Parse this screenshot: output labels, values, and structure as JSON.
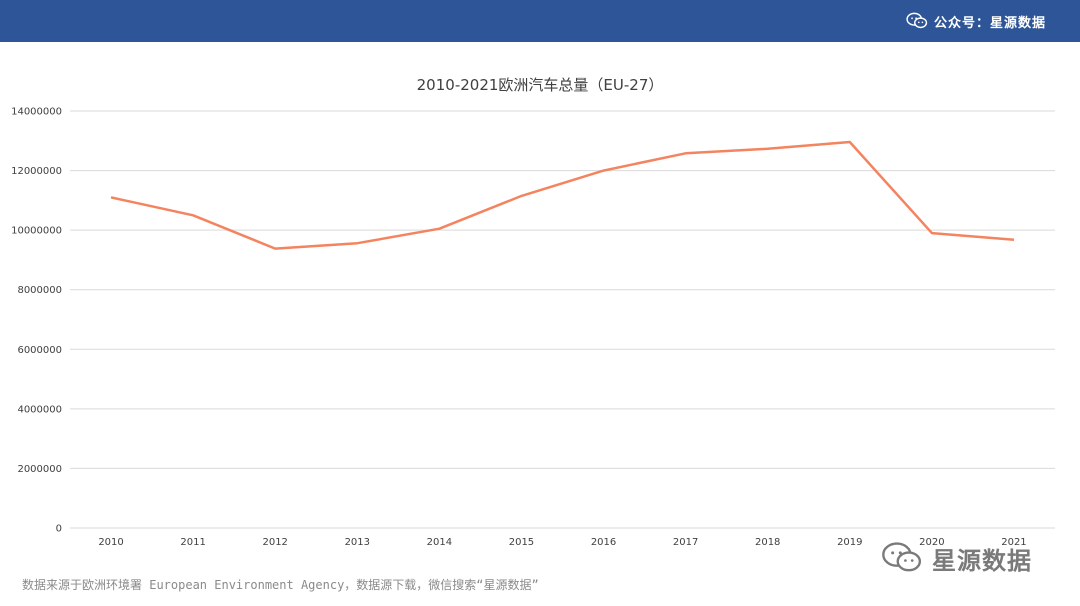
{
  "header": {
    "account_label": "公众号：星源数据",
    "bar_color": "#2e5597",
    "icon": "wechat-icon"
  },
  "chart_data": {
    "type": "line",
    "title": "2010-2021欧洲汽车总量（EU-27）",
    "xlabel": "",
    "ylabel": "",
    "categories": [
      "2010",
      "2011",
      "2012",
      "2013",
      "2014",
      "2015",
      "2016",
      "2017",
      "2018",
      "2019",
      "2020",
      "2021"
    ],
    "series": [
      {
        "values": [
          11100000,
          10500000,
          9380000,
          9560000,
          10050000,
          11150000,
          12000000,
          12580000,
          12730000,
          12960000,
          9900000,
          9680000
        ],
        "color": "#f4845f"
      }
    ],
    "ylim": [
      0,
      14000000
    ],
    "yticks": [
      "0",
      "2000000",
      "4000000",
      "6000000",
      "8000000",
      "10000000",
      "12000000",
      "14000000"
    ],
    "grid": true,
    "legend": "none"
  },
  "footnote": "数据来源于欧洲环境署 European Environment Agency，数据源下载，微信搜索“星源数据”",
  "watermark": {
    "text": "星源数据",
    "icon": "wechat-icon"
  }
}
